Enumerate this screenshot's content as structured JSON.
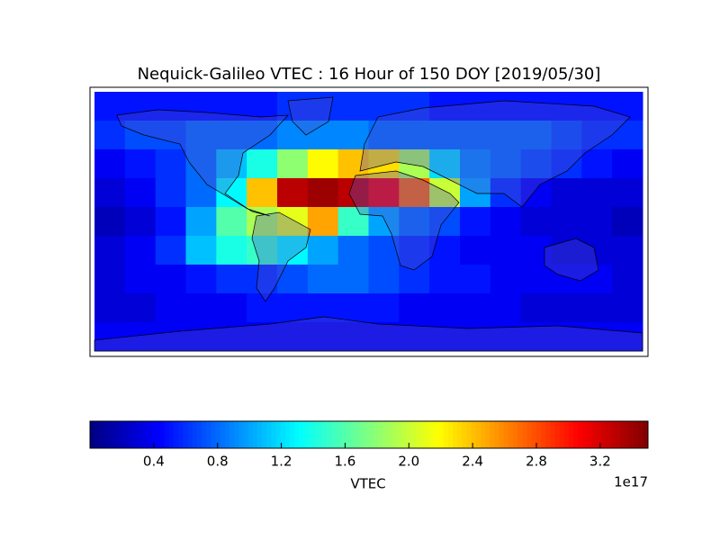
{
  "chart_data": {
    "type": "heatmap",
    "title": "Nequick-Galileo VTEC : 16 Hour of 150 DOY [2019/05/30]",
    "colorbar_label": "VTEC",
    "colorbar_offset": "1e17",
    "colormap": "jet",
    "clim": [
      0,
      3.5
    ],
    "cbticks": [
      0.4,
      0.8,
      1.2,
      1.6,
      {
        "value": 2,
        "label": "2.0"
      },
      2.4,
      2.8,
      3.2
    ],
    "values": [
      [
        0.5,
        0.5,
        0.5,
        0.5,
        0.5,
        0.5,
        0.6,
        0.6,
        0.6,
        0.6,
        0.6,
        0.5,
        0.5,
        0.5,
        0.5,
        0.5,
        0.5,
        0.5
      ],
      [
        0.6,
        0.7,
        0.7,
        0.8,
        0.8,
        0.8,
        0.9,
        0.9,
        0.9,
        0.8,
        0.8,
        0.8,
        0.8,
        0.8,
        0.8,
        0.7,
        0.6,
        0.6
      ],
      [
        0.4,
        0.5,
        0.6,
        0.8,
        1.1,
        1.4,
        1.8,
        2.2,
        2.4,
        2.3,
        1.9,
        1.2,
        0.9,
        0.8,
        0.7,
        0.6,
        0.5,
        0.4
      ],
      [
        0.3,
        0.4,
        0.6,
        0.8,
        1.3,
        2.4,
        3.3,
        3.4,
        3.3,
        3.1,
        2.7,
        2.0,
        1.0,
        0.6,
        0.4,
        0.3,
        0.3,
        0.3
      ],
      [
        0.2,
        0.3,
        0.5,
        1.0,
        1.6,
        1.9,
        2.1,
        2.5,
        1.5,
        1.0,
        0.8,
        0.7,
        0.5,
        0.4,
        0.3,
        0.3,
        0.3,
        0.2
      ],
      [
        0.3,
        0.4,
        0.6,
        1.1,
        1.4,
        1.5,
        1.3,
        1.0,
        0.8,
        0.7,
        0.6,
        0.5,
        0.4,
        0.4,
        0.4,
        0.3,
        0.3,
        0.3
      ],
      [
        0.3,
        0.4,
        0.4,
        0.5,
        0.6,
        0.6,
        0.7,
        0.8,
        0.8,
        0.7,
        0.6,
        0.5,
        0.5,
        0.4,
        0.4,
        0.4,
        0.4,
        0.3
      ],
      [
        0.3,
        0.3,
        0.4,
        0.4,
        0.4,
        0.5,
        0.5,
        0.5,
        0.5,
        0.5,
        0.4,
        0.4,
        0.4,
        0.4,
        0.3,
        0.3,
        0.3,
        0.3
      ],
      [
        0.4,
        0.4,
        0.4,
        0.4,
        0.4,
        0.4,
        0.4,
        0.4,
        0.4,
        0.4,
        0.4,
        0.4,
        0.4,
        0.4,
        0.4,
        0.4,
        0.4,
        0.4
      ]
    ]
  }
}
